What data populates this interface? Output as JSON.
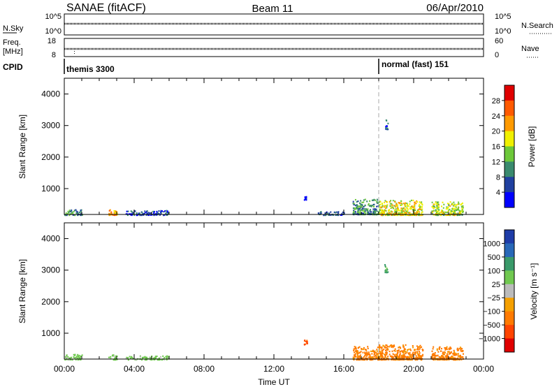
{
  "header": {
    "station": "SANAE (fitACF)",
    "beam": "Beam 11",
    "date": "06/Apr/2010"
  },
  "top_panels": {
    "nsky_label": "N.Sky",
    "nsky_ticks": [
      "10^5",
      "10^0"
    ],
    "nsearch_label": "N.Search",
    "nsearch_ticks": [
      "10^5",
      "10^0"
    ],
    "freq_label": "Freq.",
    "freq_unit": "[MHz]",
    "freq_ticks": [
      "18",
      "8"
    ],
    "nave_label": "Nave",
    "nave_ticks": [
      "60",
      "0"
    ],
    "cpid_label": "CPID",
    "cpid_segments": [
      {
        "label": "themis 3300",
        "start_hour": 0
      },
      {
        "label": "normal (fast) 151",
        "start_hour": 18
      }
    ]
  },
  "colors": {
    "power_scale": [
      "#0000ff",
      "#2040a0",
      "#3a8a6e",
      "#6dc83a",
      "#f0f000",
      "#ff9a00",
      "#ff5a00",
      "#e00000"
    ],
    "velocity_scale": [
      "#1e3ca8",
      "#2868b8",
      "#3a9a6a",
      "#70c850",
      "#bbbbbb",
      "#f5a000",
      "#ff7a00",
      "#ff4400",
      "#e00000"
    ]
  },
  "chart_data": [
    {
      "type": "heatmap",
      "panel": "power",
      "ylabel": "Slant Range [km]",
      "ylim": [
        180,
        4500
      ],
      "yticks": [
        "1000",
        "2000",
        "3000",
        "4000"
      ],
      "xlim": [
        0,
        24
      ],
      "colorbar_label": "Power [dB]",
      "colorbar_ticks": [
        "4",
        "8",
        "12",
        "16",
        "20",
        "24",
        "28"
      ],
      "clusters": [
        {
          "x0": 0.0,
          "x1": 1.0,
          "r0": 180,
          "r1": 350,
          "value": 10
        },
        {
          "x0": 2.5,
          "x1": 3.0,
          "r0": 180,
          "r1": 380,
          "value": 22
        },
        {
          "x0": 3.5,
          "x1": 6.0,
          "r0": 180,
          "r1": 330,
          "value": 6
        },
        {
          "x0": 13.7,
          "x1": 13.9,
          "r0": 650,
          "r1": 800,
          "value": 4
        },
        {
          "x0": 14.5,
          "x1": 16.0,
          "r0": 180,
          "r1": 300,
          "value": 6
        },
        {
          "x0": 16.5,
          "x1": 18.0,
          "r0": 200,
          "r1": 700,
          "value": 10
        },
        {
          "x0": 18.0,
          "x1": 20.5,
          "r0": 180,
          "r1": 650,
          "value": 18
        },
        {
          "x0": 21.0,
          "x1": 22.8,
          "r0": 180,
          "r1": 600,
          "value": 16
        },
        {
          "x0": 18.3,
          "x1": 18.5,
          "r0": 2900,
          "r1": 3200,
          "value": 6
        }
      ]
    },
    {
      "type": "heatmap",
      "panel": "velocity",
      "ylabel": "Slant Range [km]",
      "ylim": [
        180,
        4500
      ],
      "yticks": [
        "1000",
        "2000",
        "3000",
        "4000"
      ],
      "xlim": [
        0,
        24
      ],
      "xticks": [
        "00:00",
        "04:00",
        "08:00",
        "12:00",
        "16:00",
        "20:00",
        "00:00"
      ],
      "xlabel": "Time UT",
      "colorbar_label": "Velocity [m s⁻¹]",
      "colorbar_ticks": [
        "1000",
        "500",
        "100",
        "25",
        "−25",
        "−100",
        "−500",
        "−1000"
      ],
      "clusters": [
        {
          "x0": 0.0,
          "x1": 1.0,
          "r0": 180,
          "r1": 350,
          "value": 50
        },
        {
          "x0": 2.5,
          "x1": 3.0,
          "r0": 180,
          "r1": 350,
          "value": 50
        },
        {
          "x0": 3.5,
          "x1": 6.0,
          "r0": 180,
          "r1": 300,
          "value": 50
        },
        {
          "x0": 13.7,
          "x1": 13.9,
          "r0": 650,
          "r1": 800,
          "value": -600
        },
        {
          "x0": 16.5,
          "x1": 18.0,
          "r0": 180,
          "r1": 600,
          "value": -150
        },
        {
          "x0": 18.0,
          "x1": 20.5,
          "r0": 180,
          "r1": 650,
          "value": -150
        },
        {
          "x0": 21.0,
          "x1": 22.8,
          "r0": 180,
          "r1": 600,
          "value": -150
        },
        {
          "x0": 18.3,
          "x1": 18.5,
          "r0": 2950,
          "r1": 3200,
          "value": 150
        }
      ]
    }
  ]
}
